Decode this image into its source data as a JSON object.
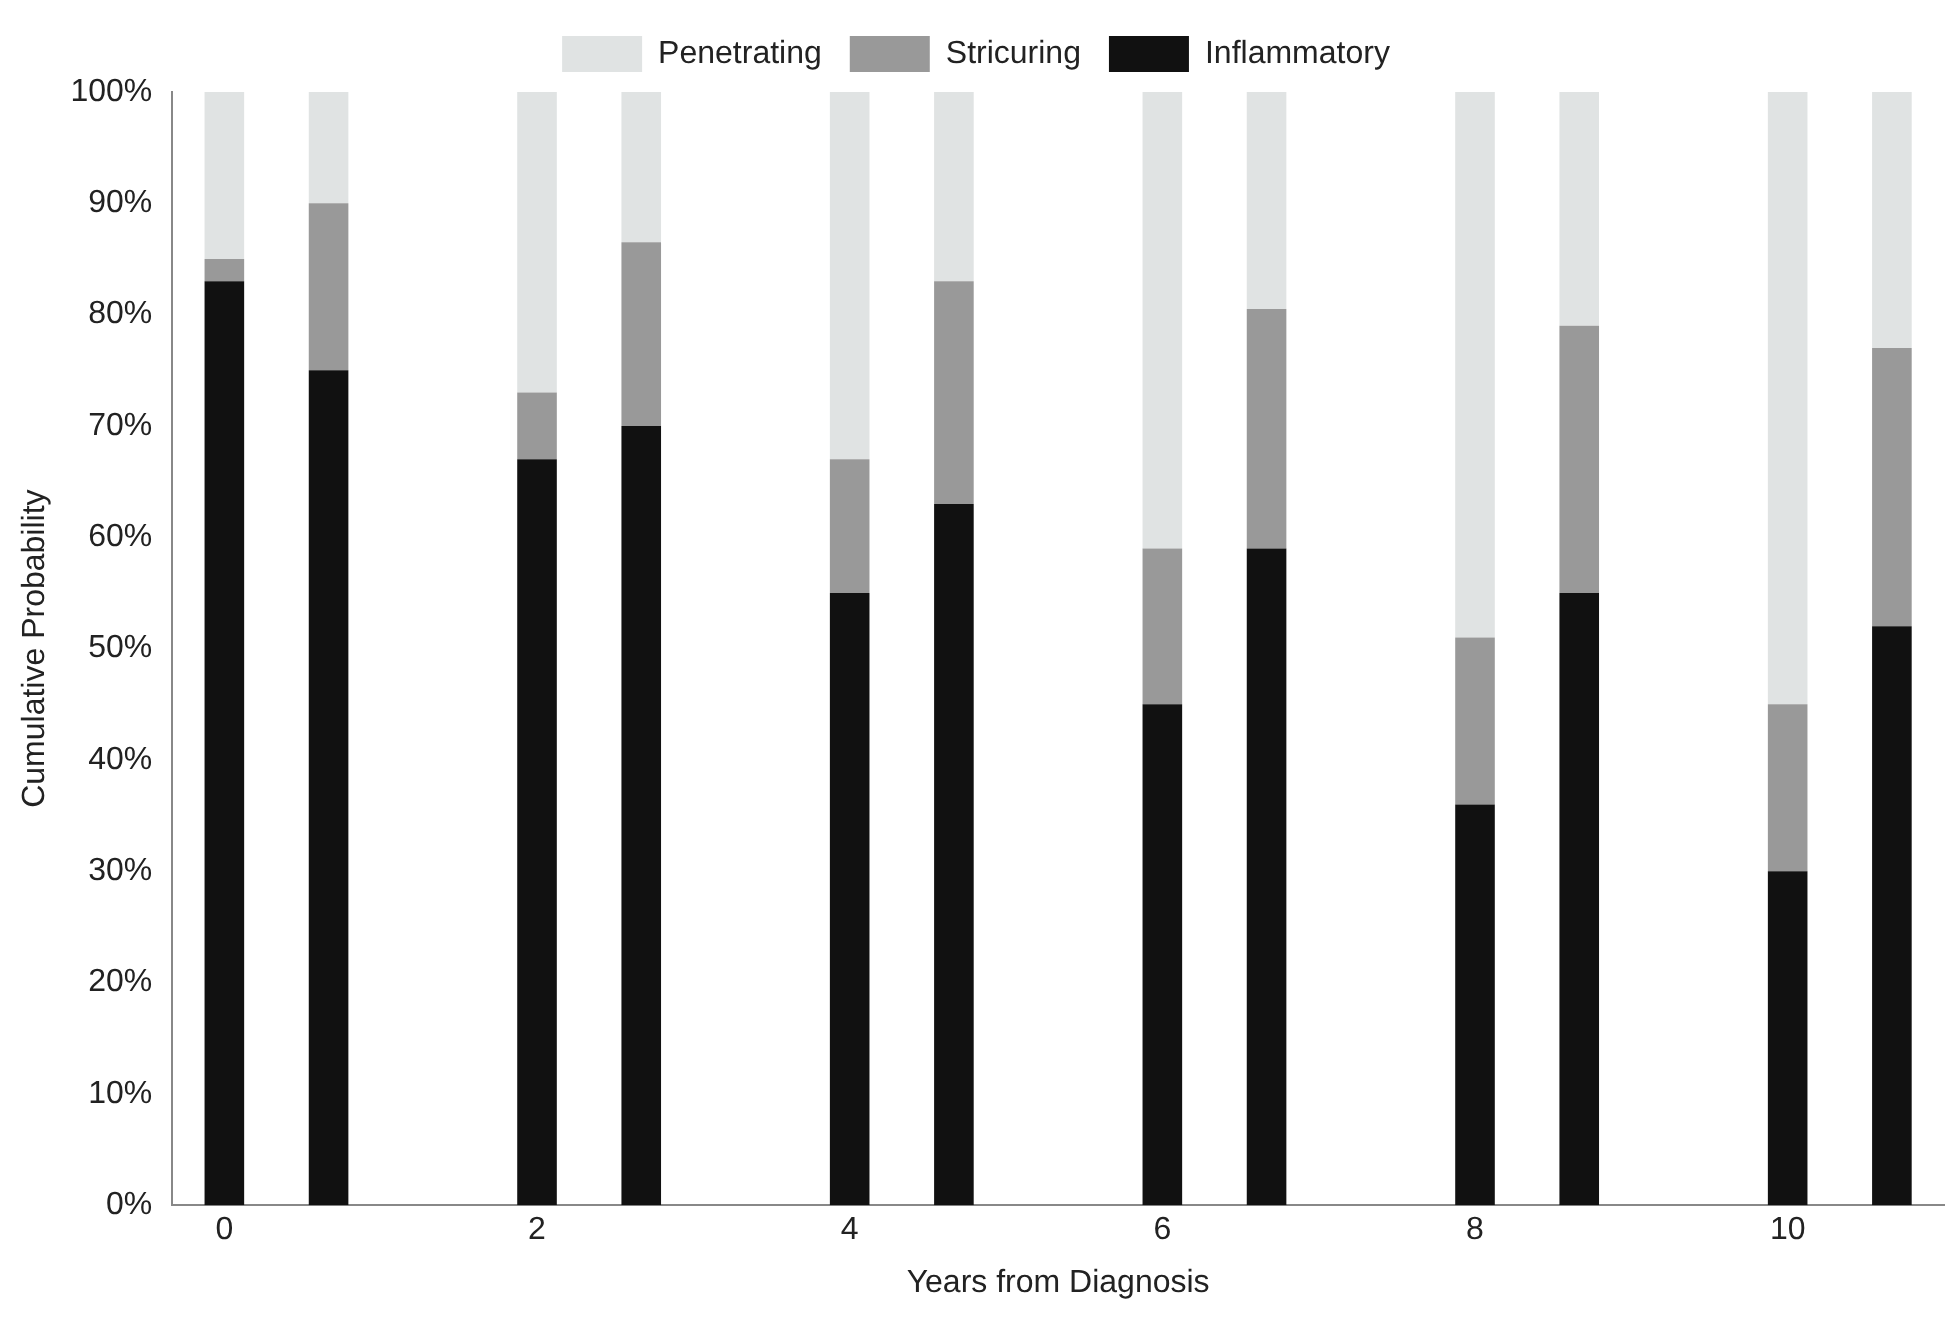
{
  "chart_data": {
    "type": "bar",
    "stacked": true,
    "xlabel": "Years from Diagnosis",
    "ylabel": "Cumulative Probability",
    "categories": [
      "0",
      null,
      null,
      "2",
      null,
      null,
      "4",
      null,
      null,
      "6",
      null,
      null,
      "8",
      null,
      null,
      "10",
      null
    ],
    "series": [
      {
        "name": "Inflammatory",
        "color": "#111111",
        "values": [
          83,
          75,
          null,
          67,
          70,
          null,
          55,
          63,
          null,
          45,
          59,
          null,
          36,
          55,
          null,
          30,
          52
        ]
      },
      {
        "name": "Stricuring",
        "color": "#999999",
        "values": [
          2,
          15,
          null,
          6,
          16.5,
          null,
          12,
          20,
          null,
          14,
          21.5,
          null,
          15,
          24,
          null,
          15,
          25
        ]
      },
      {
        "name": "Penetrating",
        "color": "#e0e3e3",
        "values": [
          15,
          10,
          null,
          27,
          13.5,
          null,
          33,
          17,
          null,
          41,
          19.5,
          null,
          49,
          21,
          null,
          55,
          23
        ]
      }
    ],
    "ylim": [
      0,
      100
    ],
    "yticks": [
      {
        "value": 0,
        "label": "0%"
      },
      {
        "value": 10,
        "label": "10%"
      },
      {
        "value": 20,
        "label": "20%"
      },
      {
        "value": 30,
        "label": "30%"
      },
      {
        "value": 40,
        "label": "40%"
      },
      {
        "value": 50,
        "label": "50%"
      },
      {
        "value": 60,
        "label": "60%"
      },
      {
        "value": 70,
        "label": "70%"
      },
      {
        "value": 80,
        "label": "80%"
      },
      {
        "value": 90,
        "label": "90%"
      },
      {
        "value": 100,
        "label": "100%"
      }
    ],
    "grid": false,
    "legend": "top"
  }
}
